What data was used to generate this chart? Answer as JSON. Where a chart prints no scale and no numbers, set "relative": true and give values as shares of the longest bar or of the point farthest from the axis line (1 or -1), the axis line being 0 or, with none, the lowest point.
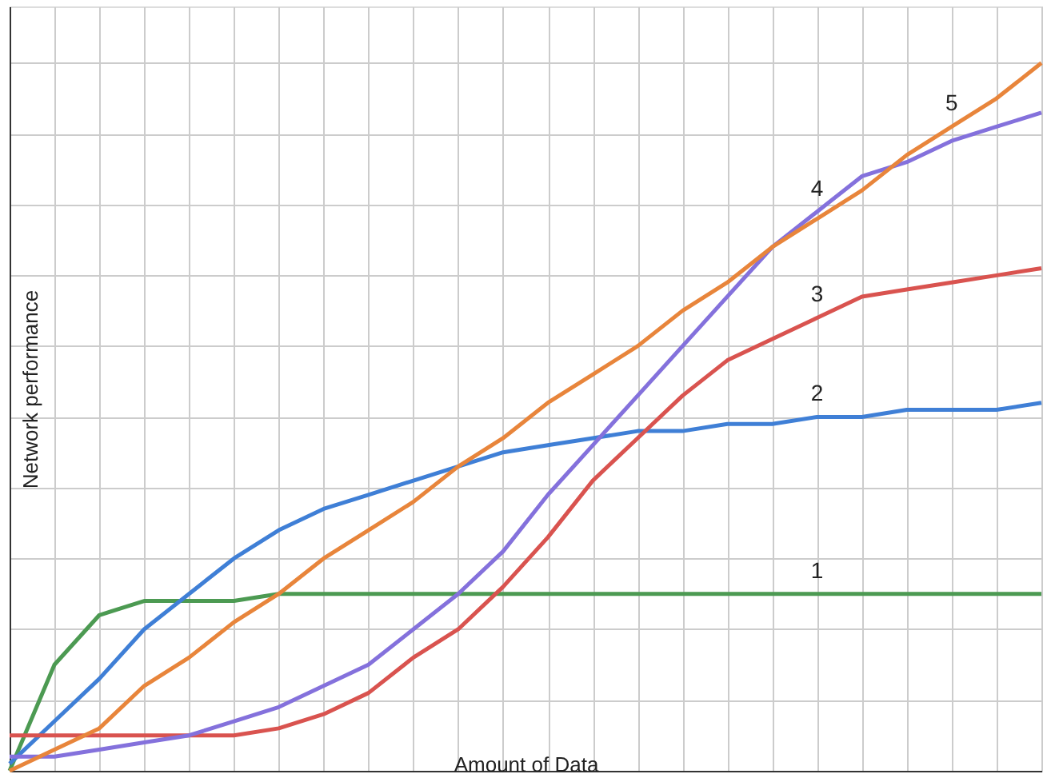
{
  "chart_data": {
    "type": "line",
    "relative": true,
    "xlabel": "Amount of Data",
    "ylabel": "Network performance",
    "grid": true,
    "legend": false,
    "marker": "none",
    "line_style": "solid",
    "categories": [
      null,
      null,
      null,
      null,
      null,
      null,
      null,
      null,
      null,
      null,
      null,
      null,
      null,
      null,
      null,
      null,
      null,
      null,
      null,
      null,
      null,
      null,
      null,
      null
    ],
    "series": [
      {
        "name": "1",
        "color": "#4c9a52",
        "values": [
          0,
          0.15,
          0.22,
          0.24,
          0.24,
          0.24,
          0.25,
          0.25,
          0.25,
          0.25,
          0.25,
          0.25,
          0.25,
          0.25,
          0.25,
          0.25,
          0.25,
          0.25,
          0.25,
          0.25,
          0.25,
          0.25,
          0.25,
          0.25
        ]
      },
      {
        "name": "2",
        "color": "#3f7fd6",
        "values": [
          0.01,
          0.07,
          0.13,
          0.2,
          0.25,
          0.3,
          0.34,
          0.37,
          0.39,
          0.41,
          0.43,
          0.45,
          0.46,
          0.47,
          0.48,
          0.48,
          0.49,
          0.49,
          0.5,
          0.5,
          0.51,
          0.51,
          0.51,
          0.52
        ]
      },
      {
        "name": "3",
        "color": "#d9534f",
        "values": [
          0.05,
          0.05,
          0.05,
          0.05,
          0.05,
          0.05,
          0.06,
          0.08,
          0.11,
          0.16,
          0.2,
          0.26,
          0.33,
          0.41,
          0.47,
          0.53,
          0.58,
          0.61,
          0.64,
          0.67,
          0.68,
          0.69,
          0.7,
          0.71
        ]
      },
      {
        "name": "4",
        "color": "#8471dc",
        "values": [
          0.02,
          0.02,
          0.03,
          0.04,
          0.05,
          0.07,
          0.09,
          0.12,
          0.15,
          0.2,
          0.25,
          0.31,
          0.39,
          0.46,
          0.53,
          0.6,
          0.67,
          0.74,
          0.79,
          0.84,
          0.86,
          0.89,
          0.91,
          0.93
        ]
      },
      {
        "name": "5",
        "color": "#e8853b",
        "values": [
          0,
          0.03,
          0.06,
          0.12,
          0.16,
          0.21,
          0.25,
          0.3,
          0.34,
          0.38,
          0.43,
          0.47,
          0.52,
          0.56,
          0.6,
          0.65,
          0.69,
          0.74,
          0.78,
          0.82,
          0.87,
          0.91,
          0.95,
          1.0
        ]
      }
    ]
  }
}
